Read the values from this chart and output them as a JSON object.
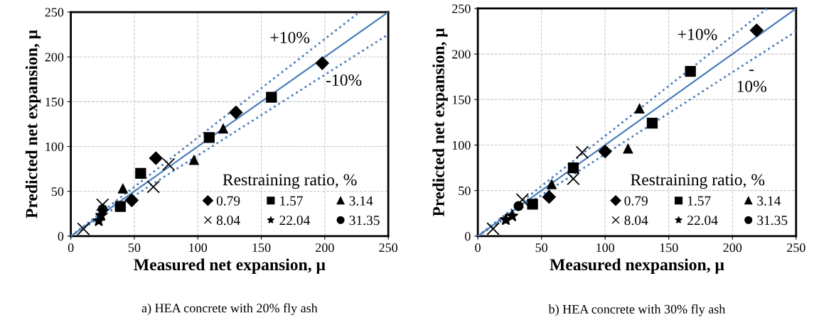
{
  "chart_data": [
    {
      "type": "scatter",
      "xlabel": "Measured net expansion, μ",
      "ylabel": "Predicted net expansion, μ",
      "legend_title": "Restraining ratio, %",
      "legend": "bottom right",
      "grid": true,
      "xlim": [
        0,
        250
      ],
      "ylim": [
        0,
        250
      ],
      "xticks": [
        0,
        50,
        100,
        150,
        200,
        250
      ],
      "yticks": [
        0,
        50,
        100,
        150,
        200,
        250
      ],
      "annotations": [
        "+10%",
        "-10%",
        "a) HEA concrete with 20% fly ash"
      ],
      "series": [
        {
          "name": "0.79",
          "color": "#000000",
          "marker": "diamond",
          "x": [
            198,
            130,
            67,
            48
          ],
          "values": [
            193,
            138,
            87,
            40
          ]
        },
        {
          "name": "1.57",
          "color": "#000000",
          "marker": "square",
          "x": [
            158,
            109,
            55,
            39
          ],
          "values": [
            155,
            110,
            70,
            33
          ]
        },
        {
          "name": "3.14",
          "color": "#000000",
          "marker": "triangle",
          "x": [
            120,
            97,
            41
          ],
          "values": [
            120,
            85,
            53
          ]
        },
        {
          "name": "8.04",
          "color": "#000000",
          "marker": "cross",
          "x": [
            77,
            65,
            10,
            25
          ],
          "values": [
            80,
            55,
            8,
            35
          ]
        },
        {
          "name": "22.04",
          "color": "#000000",
          "marker": "star",
          "x": [
            22,
            24
          ],
          "values": [
            17,
            23
          ]
        },
        {
          "name": "31.35",
          "color": "#000000",
          "marker": "circle",
          "x": [
            25
          ],
          "values": [
            30
          ]
        },
        {
          "type": "line",
          "color": "#4a7ebb",
          "line_style": "solid",
          "x": [
            0,
            250
          ],
          "values": [
            0,
            250
          ]
        },
        {
          "type": "line",
          "color": "#4a7ebb",
          "line_style": "dotted",
          "x": [
            0,
            227.3
          ],
          "values": [
            0,
            250
          ]
        },
        {
          "type": "line",
          "color": "#4a7ebb",
          "line_style": "dotted",
          "x": [
            0,
            250
          ],
          "values": [
            0,
            225
          ]
        }
      ]
    },
    {
      "type": "scatter",
      "xlabel": "Measured nexpansion, μ",
      "ylabel": "Predicted net expansion, μ",
      "legend_title": "Restraining ratio, %",
      "legend": "bottom right",
      "grid": true,
      "xlim": [
        0,
        250
      ],
      "ylim": [
        0,
        250
      ],
      "xticks": [
        0,
        50,
        100,
        150,
        200,
        250
      ],
      "yticks": [
        0,
        50,
        100,
        150,
        200,
        250
      ],
      "annotations": [
        "+10%",
        "-\n10%",
        "b) HEA concrete with 30% fly ash"
      ],
      "series": [
        {
          "name": "0.79",
          "color": "#000000",
          "marker": "diamond",
          "x": [
            219,
            100,
            56
          ],
          "values": [
            226,
            93,
            43
          ]
        },
        {
          "name": "1.57",
          "color": "#000000",
          "marker": "square",
          "x": [
            167,
            137,
            75,
            43
          ],
          "values": [
            181,
            124,
            75,
            35
          ]
        },
        {
          "name": "3.14",
          "color": "#000000",
          "marker": "triangle",
          "x": [
            127,
            118,
            58
          ],
          "values": [
            140,
            96,
            57
          ]
        },
        {
          "name": "8.04",
          "color": "#000000",
          "marker": "cross",
          "x": [
            82,
            75,
            12,
            35
          ],
          "values": [
            92,
            63,
            8,
            40
          ]
        },
        {
          "name": "22.04",
          "color": "#000000",
          "marker": "star",
          "x": [
            22,
            27
          ],
          "values": [
            18,
            22
          ]
        },
        {
          "name": "31.35",
          "color": "#000000",
          "marker": "circle",
          "x": [
            32
          ],
          "values": [
            33
          ]
        },
        {
          "type": "line",
          "color": "#4a7ebb",
          "line_style": "solid",
          "x": [
            0,
            250
          ],
          "values": [
            0,
            250
          ]
        },
        {
          "type": "line",
          "color": "#4a7ebb",
          "line_style": "dotted",
          "x": [
            0,
            227.3
          ],
          "values": [
            0,
            250
          ]
        },
        {
          "type": "line",
          "color": "#4a7ebb",
          "line_style": "dotted",
          "x": [
            0,
            250
          ],
          "values": [
            0,
            225
          ]
        }
      ]
    }
  ]
}
